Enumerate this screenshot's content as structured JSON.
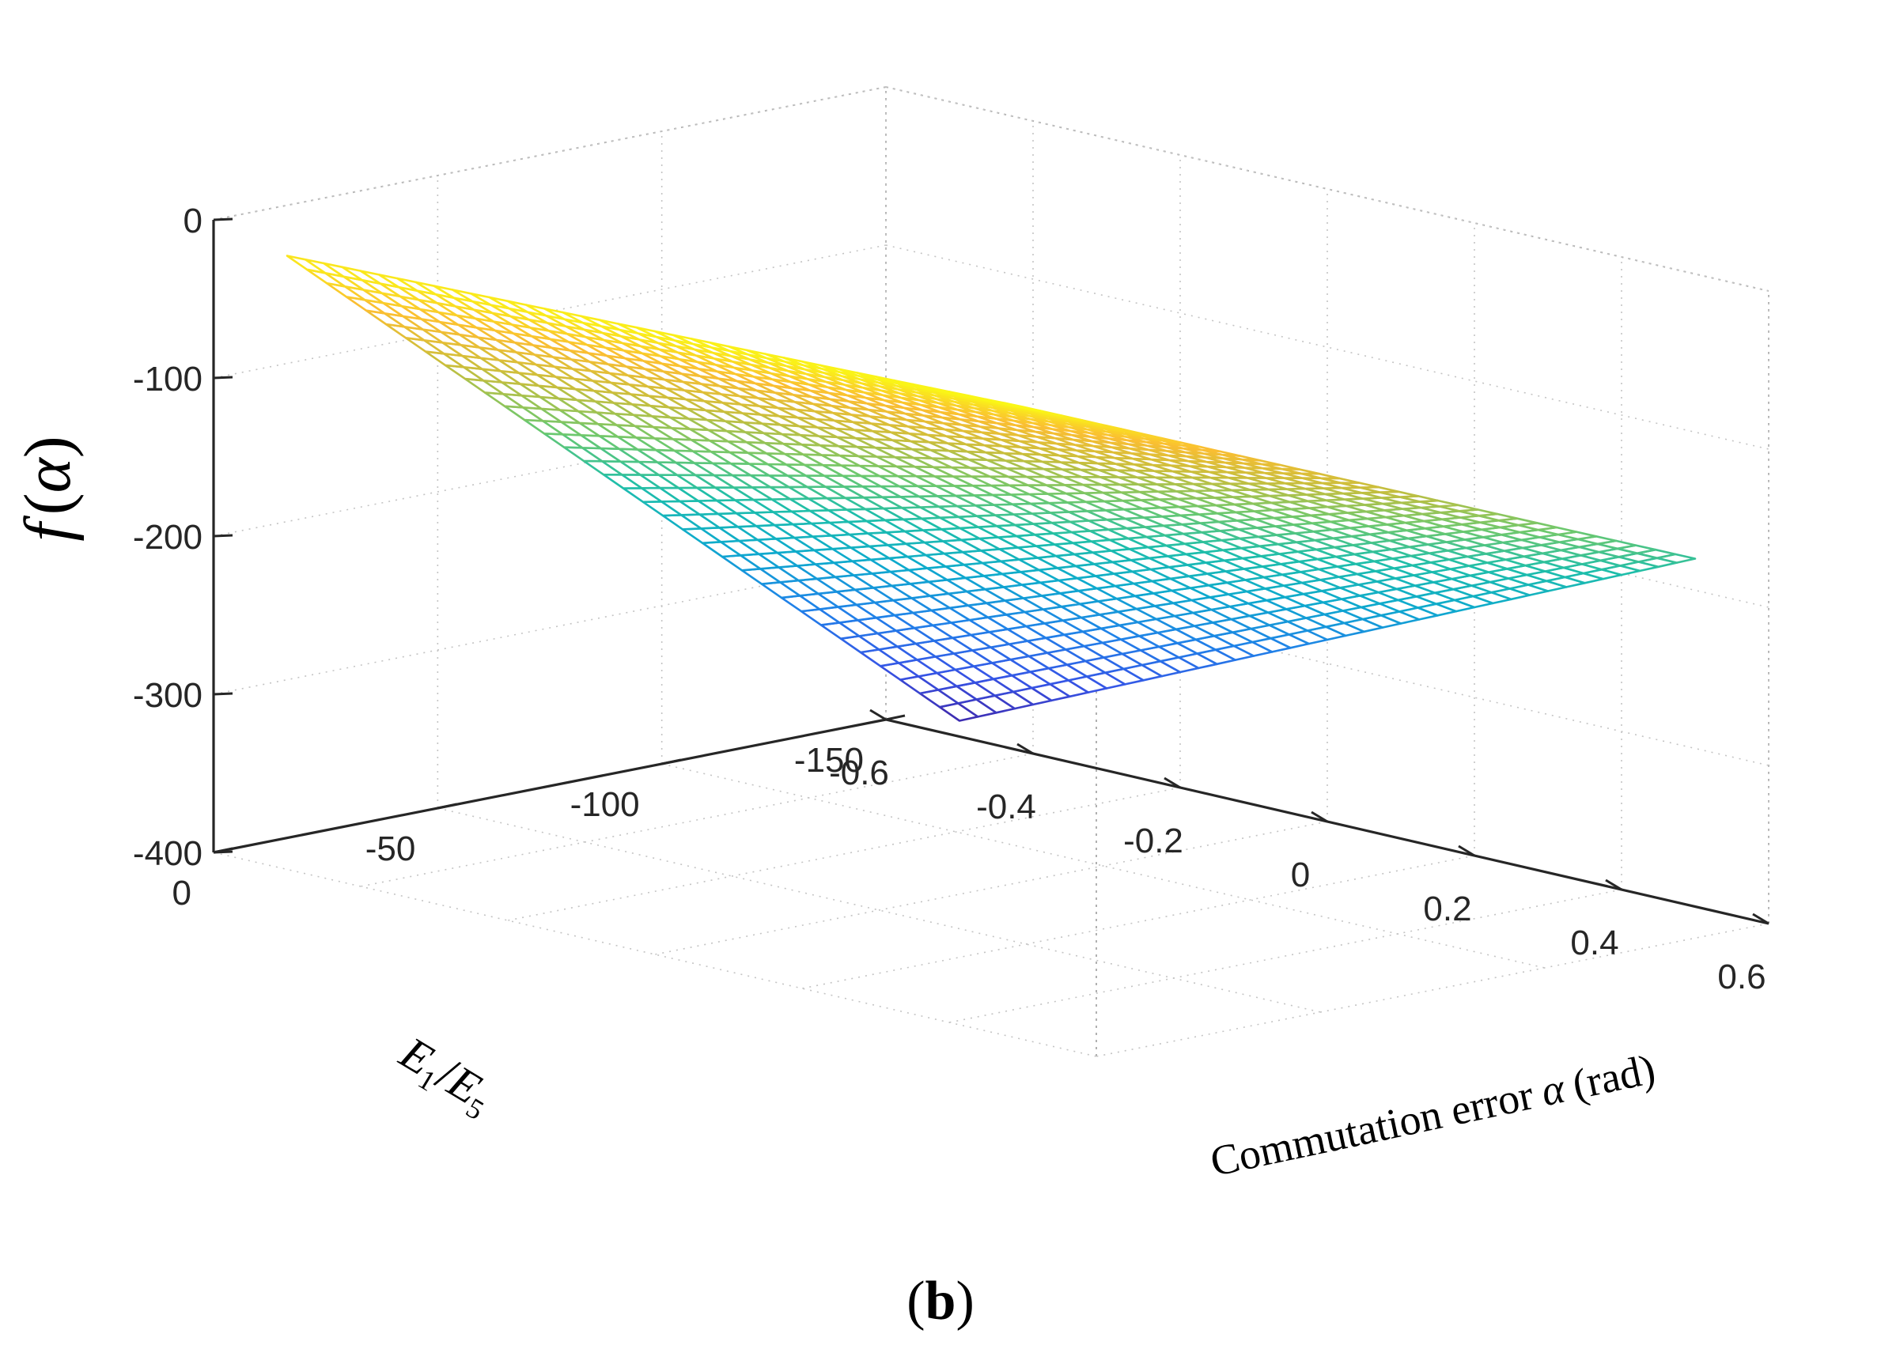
{
  "chart_data": {
    "type": "surface",
    "title": "",
    "x_axis": {
      "label": "Commutation error",
      "label_symbol": "α",
      "label_unit": "(rad)",
      "range": [
        -0.6,
        0.6
      ],
      "ticks": [
        -0.6,
        -0.4,
        -0.2,
        0,
        0.2,
        0.4,
        0.6
      ],
      "tick_labels": [
        "-0.6",
        "-0.4",
        "-0.2",
        "0",
        "0.2",
        "0.4",
        "0.6"
      ]
    },
    "y_axis": {
      "label_num": "E",
      "label_num_sub": "1",
      "label_den": "E",
      "label_den_sub": "5",
      "label_sep": "/",
      "range": [
        -150,
        0
      ],
      "ticks": [
        0,
        -50,
        -100,
        -150
      ],
      "tick_labels": [
        "0",
        "-50",
        "-100",
        "-150"
      ]
    },
    "z_axis": {
      "label_func": "f",
      "label_arg": "α",
      "label_open": "(",
      "label_close": ")",
      "range": [
        -400,
        0
      ],
      "ticks": [
        0,
        -100,
        -200,
        -300,
        -400
      ],
      "tick_labels": [
        "0",
        "-100",
        "-200",
        "-300",
        "-400"
      ]
    },
    "surface": {
      "alpha_range": [
        -0.5,
        0.5
      ],
      "ratio_range": [
        -150,
        0
      ],
      "alpha_steps": 40,
      "ratio_steps": 34,
      "corner_values": {
        "alpha_-0.5_ratio_0": -12,
        "alpha_0.5_ratio_0": 0,
        "alpha_-0.5_ratio_-150": -390,
        "alpha_0.5_ratio_-150": -180
      },
      "colormap": "parula",
      "grid": true
    },
    "panel_label_open": "(",
    "panel_label": "b",
    "panel_label_close": ")"
  }
}
